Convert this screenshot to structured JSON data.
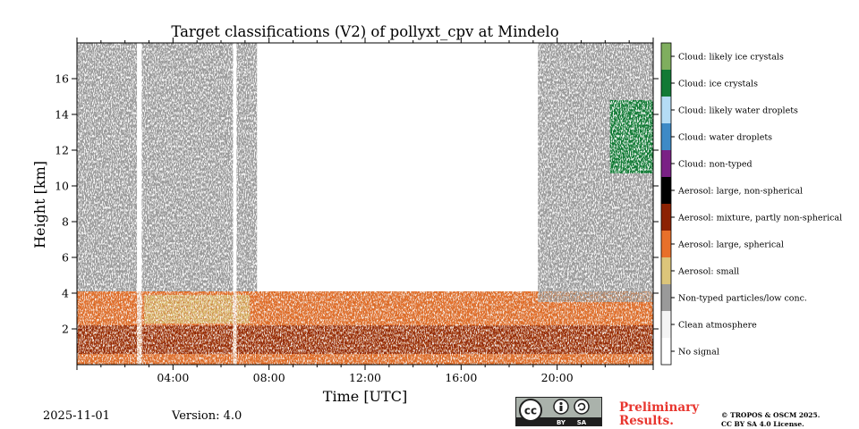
{
  "chart_data": {
    "type": "heatmap",
    "title": "Target classifications (V2) of pollyxt_cpv at Mindelo",
    "xlabel": "Time [UTC]",
    "ylabel": "Height [km]",
    "xlim_hours": [
      0,
      24
    ],
    "ylim_km": [
      0,
      18
    ],
    "x_ticks": [
      {
        "value": 4,
        "label": "04:00"
      },
      {
        "value": 8,
        "label": "08:00"
      },
      {
        "value": 12,
        "label": "12:00"
      },
      {
        "value": 16,
        "label": "16:00"
      },
      {
        "value": 20,
        "label": "20:00"
      }
    ],
    "y_ticks": [
      {
        "value": 2,
        "label": "2"
      },
      {
        "value": 4,
        "label": "4"
      },
      {
        "value": 6,
        "label": "6"
      },
      {
        "value": 8,
        "label": "8"
      },
      {
        "value": 10,
        "label": "10"
      },
      {
        "value": 12,
        "label": "12"
      },
      {
        "value": 14,
        "label": "14"
      },
      {
        "value": 16,
        "label": "16"
      }
    ],
    "classes": [
      {
        "label": "Cloud: likely ice crystals",
        "color": "#7fae5e"
      },
      {
        "label": "Cloud: ice crystals",
        "color": "#127a35"
      },
      {
        "label": "Cloud: likely water droplets",
        "color": "#b4dcf5"
      },
      {
        "label": "Cloud: water droplets",
        "color": "#3e8ac6"
      },
      {
        "label": "Cloud: non-typed",
        "color": "#7a2185"
      },
      {
        "label": "Aerosol: large, non-spherical",
        "color": "#000000"
      },
      {
        "label": "Aerosol: mixture, partly non-spherical",
        "color": "#8c2204"
      },
      {
        "label": "Aerosol: large, spherical",
        "color": "#e8702a"
      },
      {
        "label": "Aerosol: small",
        "color": "#dcc57a"
      },
      {
        "label": "Non-typed particles/low conc.",
        "color": "#9a9a9a"
      },
      {
        "label": "Clean atmosphere",
        "color": "#f4f4f4"
      },
      {
        "label": "No signal",
        "color": "#ffffff"
      }
    ],
    "regions": [
      {
        "class": "Aerosol: large, spherical",
        "t_start": 0,
        "t_end": 24,
        "h_base": 0,
        "h_top": 4.1
      },
      {
        "class": "Aerosol: mixture, partly non-spherical",
        "t_start": 0,
        "t_end": 24,
        "h_base": 0.6,
        "h_top": 2.2
      },
      {
        "class": "Aerosol: small",
        "t_start": 2.8,
        "t_end": 7.2,
        "h_base": 2.3,
        "h_top": 3.9
      },
      {
        "class": "Non-typed particles/low conc.",
        "t_start": 0,
        "t_end": 7.5,
        "h_base": 4.1,
        "h_top": 18
      },
      {
        "class": "Non-typed particles/low conc.",
        "t_start": 19.2,
        "t_end": 24,
        "h_base": 3.5,
        "h_top": 18
      },
      {
        "class": "Cloud: ice crystals",
        "t_start": 22.2,
        "t_end": 24,
        "h_base": 10.7,
        "h_top": 14.8
      },
      {
        "class": "No signal",
        "t_start": 2.5,
        "t_end": 2.7,
        "h_base": 0,
        "h_top": 18
      },
      {
        "class": "No signal",
        "t_start": 6.5,
        "t_end": 6.65,
        "h_base": 0,
        "h_top": 18
      }
    ]
  },
  "footer": {
    "date": "2025-11-01",
    "version": "Version: 4.0",
    "preliminary_line1": "Preliminary",
    "preliminary_line2": "Results.",
    "license_line1": "© TROPOS & OSCM 2025.",
    "license_line2": "CC BY SA 4.0 License.",
    "cc_logo_text": "cc",
    "cc_by": "BY",
    "cc_sa": "SA"
  }
}
